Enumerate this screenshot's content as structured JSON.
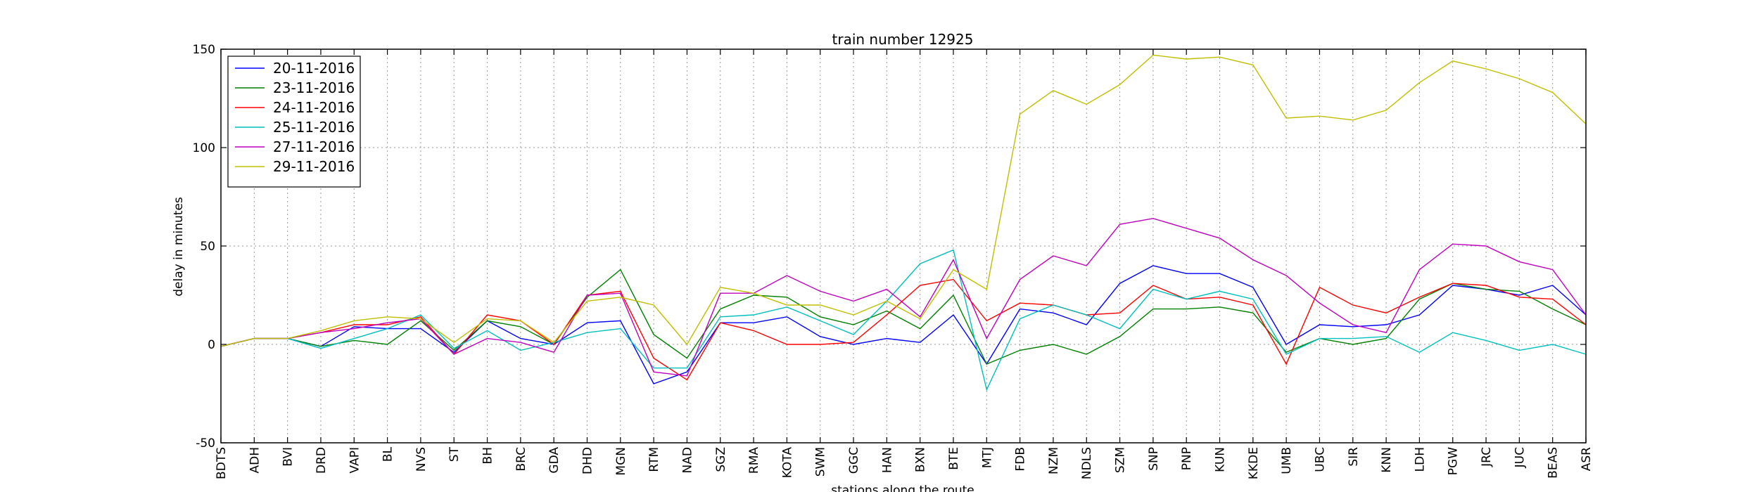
{
  "chart_data": {
    "type": "line",
    "title": "train number 12925",
    "xlabel": "stations along the route",
    "ylabel": "delay in minutes",
    "ylim": [
      -50,
      150
    ],
    "yticks": [
      -50,
      0,
      50,
      100,
      150
    ],
    "grid": true,
    "legend_position": "top-left",
    "categories": [
      "BDTS",
      "ADH",
      "BVI",
      "DRD",
      "VAPI",
      "BL",
      "NVS",
      "ST",
      "BH",
      "BRC",
      "GDA",
      "DHD",
      "MGN",
      "RTM",
      "NAD",
      "SGZ",
      "RMA",
      "KOTA",
      "SWM",
      "GGC",
      "HAN",
      "BXN",
      "BTE",
      "MTJ",
      "FDB",
      "NZM",
      "NDLS",
      "SZM",
      "SNP",
      "PNP",
      "KUN",
      "KKDE",
      "UMB",
      "UBC",
      "SIR",
      "KNN",
      "LDH",
      "PGW",
      "JRC",
      "JUC",
      "BEAS",
      "ASR"
    ],
    "series": [
      {
        "name": "20-11-2016",
        "color": "#0000ff",
        "values": [
          -1,
          3,
          3,
          -1,
          9,
          8,
          8,
          -4,
          12,
          3,
          0,
          11,
          12,
          -20,
          -14,
          11,
          11,
          14,
          4,
          0,
          3,
          1,
          15,
          -10,
          18,
          16,
          10,
          31,
          40,
          36,
          36,
          29,
          0,
          10,
          9,
          10,
          15,
          30,
          28,
          25,
          30,
          15
        ]
      },
      {
        "name": "23-11-2016",
        "color": "#008000",
        "values": [
          -1,
          3,
          3,
          -1,
          2,
          0,
          12,
          -3,
          12,
          9,
          0,
          24,
          38,
          5,
          -7,
          18,
          25,
          24,
          14,
          10,
          17,
          8,
          25,
          -10,
          -3,
          0,
          -5,
          4,
          18,
          18,
          19,
          16,
          -4,
          3,
          0,
          3,
          23,
          31,
          28,
          27,
          18,
          10
        ]
      },
      {
        "name": "24-11-2016",
        "color": "#ff0000",
        "values": [
          -1,
          3,
          3,
          6,
          10,
          10,
          14,
          -5,
          15,
          12,
          0,
          25,
          27,
          -7,
          -18,
          11,
          7,
          0,
          0,
          1,
          15,
          30,
          33,
          12,
          21,
          20,
          15,
          16,
          30,
          23,
          24,
          20,
          -10,
          29,
          20,
          16,
          24,
          31,
          30,
          24,
          23,
          10
        ]
      },
      {
        "name": "25-11-2016",
        "color": "#00bfbf",
        "values": [
          -1,
          3,
          3,
          -2,
          3,
          8,
          15,
          -2,
          7,
          -3,
          1,
          6,
          8,
          -12,
          -12,
          14,
          15,
          19,
          12,
          5,
          22,
          41,
          48,
          -23,
          13,
          20,
          15,
          8,
          28,
          23,
          27,
          23,
          -5,
          3,
          3,
          4,
          -4,
          6,
          2,
          -3,
          0,
          -5
        ]
      },
      {
        "name": "27-11-2016",
        "color": "#bf00bf",
        "values": [
          -1,
          3,
          3,
          6,
          8,
          11,
          13,
          -5,
          3,
          1,
          -4,
          25,
          26,
          -14,
          -16,
          26,
          26,
          35,
          27,
          22,
          28,
          14,
          43,
          3,
          33,
          45,
          40,
          61,
          64,
          59,
          54,
          43,
          35,
          21,
          10,
          6,
          38,
          51,
          50,
          42,
          38,
          15
        ]
      },
      {
        "name": "29-11-2016",
        "color": "#bfbf00",
        "values": [
          -1,
          3,
          3,
          7,
          12,
          14,
          13,
          1,
          13,
          12,
          1,
          22,
          24,
          20,
          0,
          29,
          26,
          20,
          20,
          15,
          22,
          13,
          38,
          28,
          117,
          129,
          122,
          132,
          147,
          145,
          146,
          142,
          115,
          116,
          114,
          119,
          133,
          144,
          140,
          135,
          128,
          112
        ]
      }
    ]
  }
}
